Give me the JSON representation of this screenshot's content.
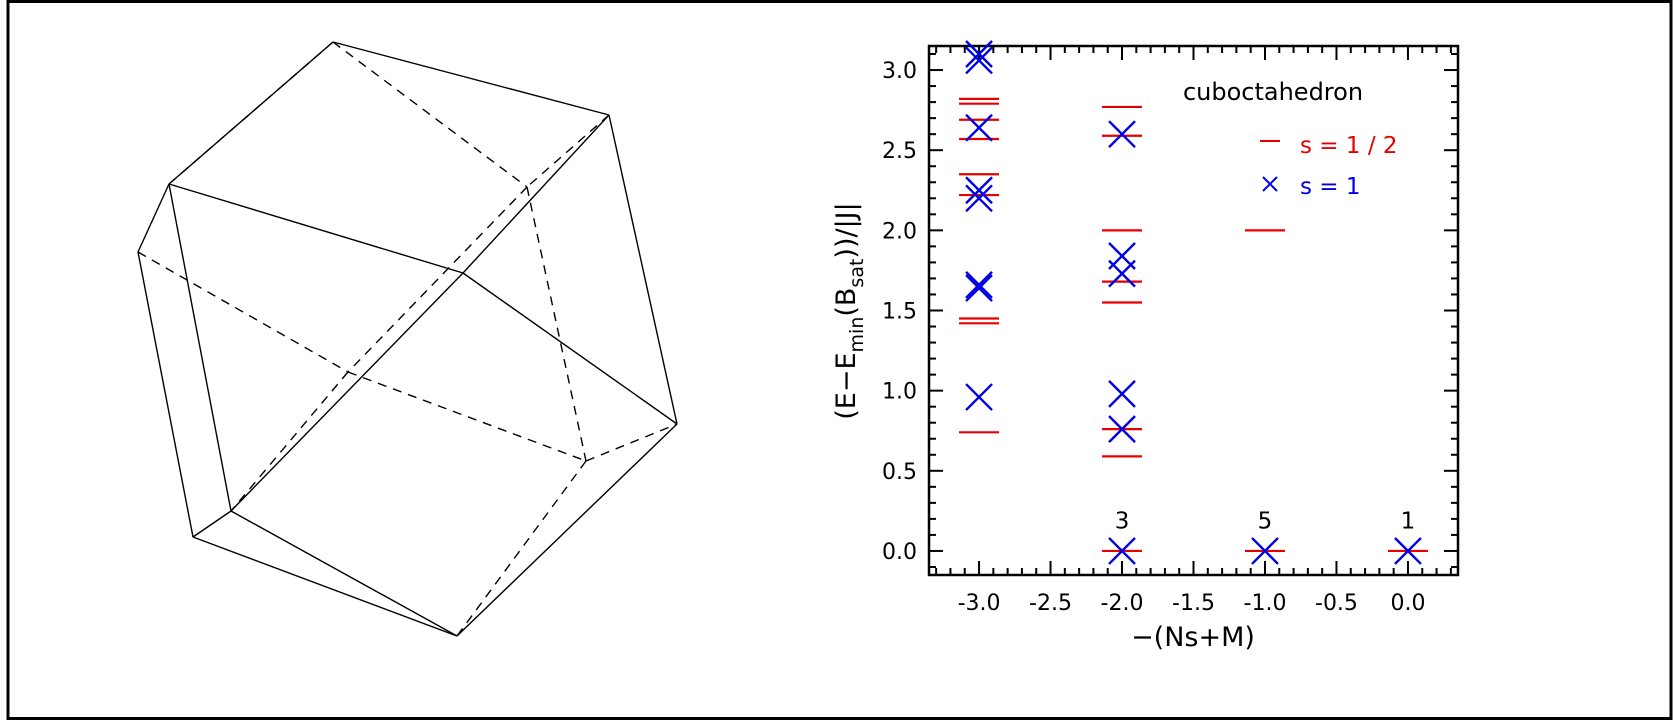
{
  "colors": {
    "s_half": "#e60000",
    "s_one": "#0000e6",
    "axis": "#000000"
  },
  "left_panel": {
    "shape": "cuboctahedron wireframe (solid edges visible, dashed edges hidden)"
  },
  "chart_data": {
    "type": "scatter",
    "title": "",
    "xlabel": "−(Ns+M)",
    "ylabel_parts": {
      "prefix": "(E−E",
      "sub1": "min",
      "mid": "(B",
      "sub2": "sat",
      "suffix": "))/|J|"
    },
    "xlim": [
      -3.35,
      0.35
    ],
    "ylim": [
      -0.15,
      3.15
    ],
    "xticks": [
      -3.0,
      -2.5,
      -2.0,
      -1.5,
      -1.0,
      -0.5,
      0.0
    ],
    "xtick_labels": [
      "-3.0",
      "-2.5",
      "-2.0",
      "-1.5",
      "-1.0",
      "-0.5",
      "0.0"
    ],
    "yticks": [
      0.0,
      0.5,
      1.0,
      1.5,
      2.0,
      2.5,
      3.0
    ],
    "ytick_labels": [
      "0.0",
      "0.5",
      "1.0",
      "1.5",
      "2.0",
      "2.5",
      "3.0"
    ],
    "legend": {
      "title": "cuboctahedron",
      "entries": [
        {
          "label": "s = 1 / 2",
          "marker": "dash",
          "color": "#e60000"
        },
        {
          "label": "s = 1",
          "marker": "cross",
          "color": "#0000e6"
        }
      ],
      "placement": "top-right"
    },
    "series": [
      {
        "name": "s = 1 / 2",
        "marker": "dash",
        "color": "#e60000",
        "points": [
          {
            "x": -3.0,
            "y": 0.74
          },
          {
            "x": -3.0,
            "y": 1.42
          },
          {
            "x": -3.0,
            "y": 1.45
          },
          {
            "x": -3.0,
            "y": 2.22
          },
          {
            "x": -3.0,
            "y": 2.35
          },
          {
            "x": -3.0,
            "y": 2.57
          },
          {
            "x": -3.0,
            "y": 2.69
          },
          {
            "x": -3.0,
            "y": 2.79
          },
          {
            "x": -3.0,
            "y": 2.82
          },
          {
            "x": -2.0,
            "y": 0.0
          },
          {
            "x": -2.0,
            "y": 0.59
          },
          {
            "x": -2.0,
            "y": 0.76
          },
          {
            "x": -2.0,
            "y": 1.55
          },
          {
            "x": -2.0,
            "y": 1.68
          },
          {
            "x": -2.0,
            "y": 2.0
          },
          {
            "x": -2.0,
            "y": 2.59
          },
          {
            "x": -2.0,
            "y": 2.77
          },
          {
            "x": -1.0,
            "y": 0.0
          },
          {
            "x": -1.0,
            "y": 2.0
          },
          {
            "x": 0.0,
            "y": 0.0
          }
        ]
      },
      {
        "name": "s = 1",
        "marker": "cross",
        "color": "#0000e6",
        "points": [
          {
            "x": -3.0,
            "y": 0.96
          },
          {
            "x": -3.0,
            "y": 1.64
          },
          {
            "x": -3.0,
            "y": 1.66
          },
          {
            "x": -3.0,
            "y": 2.2
          },
          {
            "x": -3.0,
            "y": 2.25
          },
          {
            "x": -3.0,
            "y": 2.64
          },
          {
            "x": -3.0,
            "y": 3.06
          },
          {
            "x": -3.0,
            "y": 3.1
          },
          {
            "x": -2.0,
            "y": 0.0
          },
          {
            "x": -2.0,
            "y": 0.76
          },
          {
            "x": -2.0,
            "y": 0.98
          },
          {
            "x": -2.0,
            "y": 1.73
          },
          {
            "x": -2.0,
            "y": 1.84
          },
          {
            "x": -2.0,
            "y": 2.6
          },
          {
            "x": -1.0,
            "y": 0.0
          },
          {
            "x": 0.0,
            "y": 0.0
          }
        ]
      }
    ],
    "annotations": [
      {
        "text": "3",
        "x": -2.0,
        "y": 0.19
      },
      {
        "text": "5",
        "x": -1.0,
        "y": 0.19
      },
      {
        "text": "1",
        "x": 0.0,
        "y": 0.19
      }
    ]
  }
}
